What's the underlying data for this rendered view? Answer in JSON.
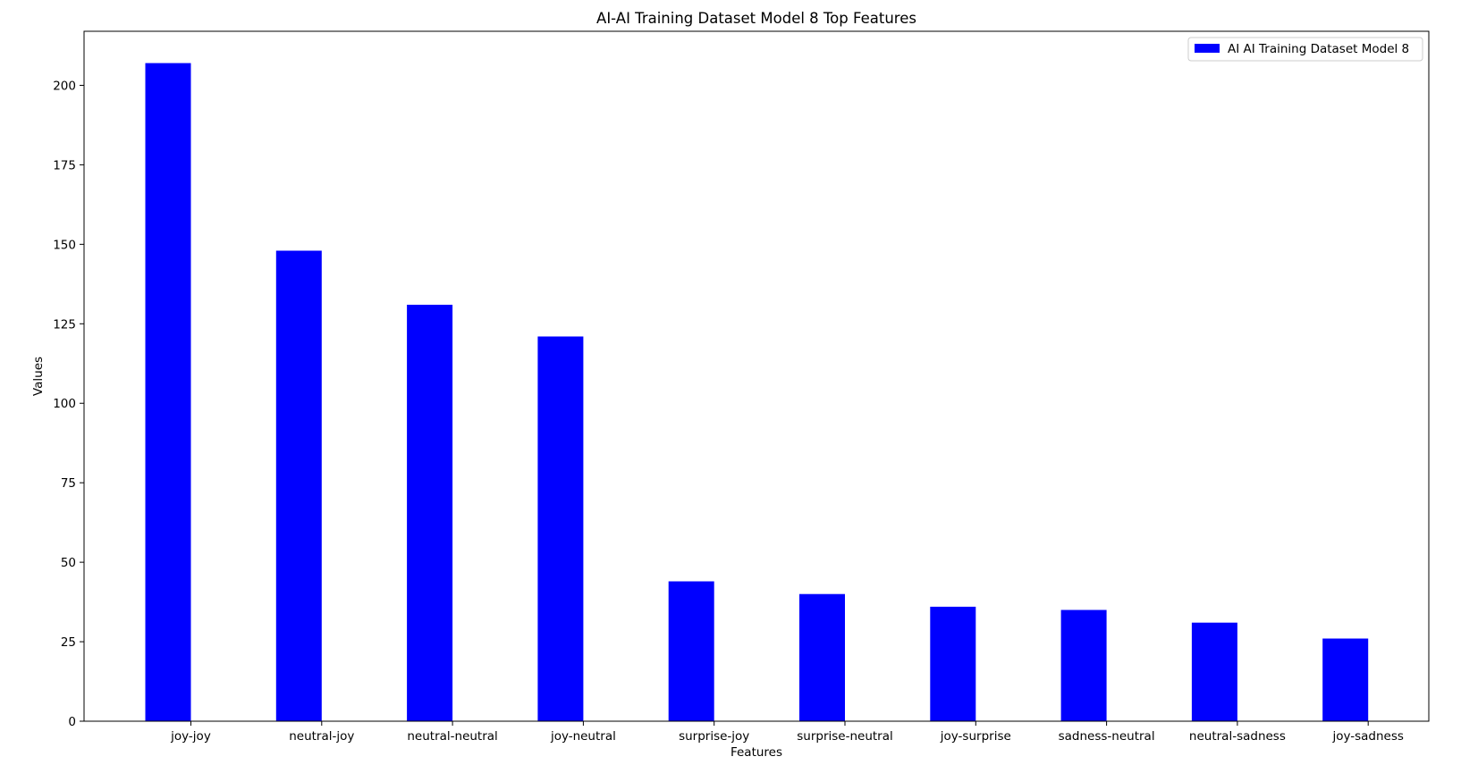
{
  "chart_data": {
    "type": "bar",
    "title": "AI-AI Training Dataset Model 8 Top Features",
    "xlabel": "Features",
    "ylabel": "Values",
    "categories": [
      "joy-joy",
      "neutral-joy",
      "neutral-neutral",
      "joy-neutral",
      "surprise-joy",
      "surprise-neutral",
      "joy-surprise",
      "sadness-neutral",
      "neutral-sadness",
      "joy-sadness"
    ],
    "series": [
      {
        "name": "AI AI Training Dataset Model 8",
        "values": [
          207,
          148,
          131,
          121,
          44,
          40,
          36,
          35,
          31,
          26
        ],
        "color": "#0000ff"
      }
    ],
    "ylim": [
      0,
      217
    ],
    "yticks": [
      0,
      25,
      50,
      75,
      100,
      125,
      150,
      175,
      200
    ],
    "grid": false,
    "legend_position": "top-right"
  }
}
